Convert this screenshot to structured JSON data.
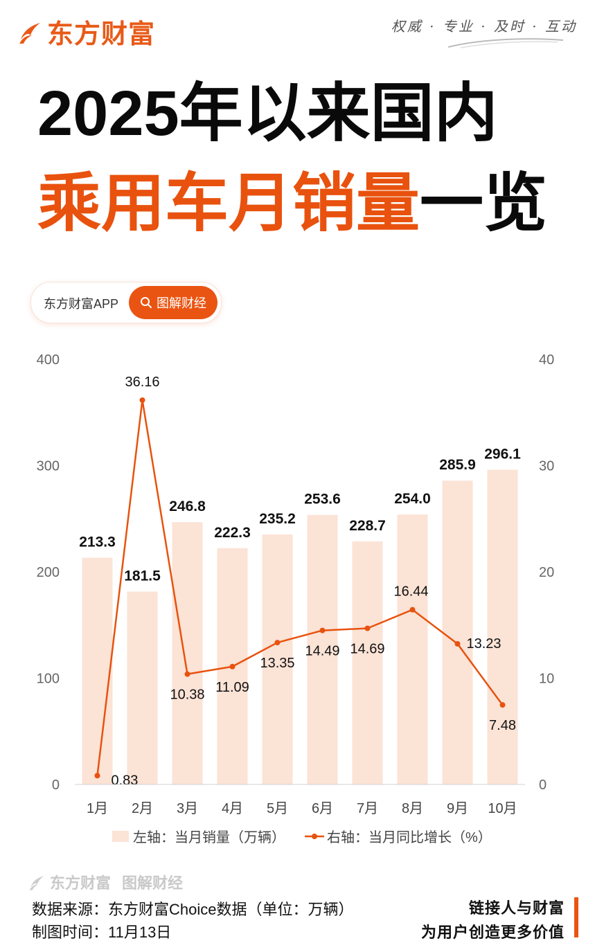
{
  "header": {
    "brand": "东方财富",
    "slogan": "权威 · 专业 · 及时 · 互动"
  },
  "title": {
    "line1": "2025年以来国内",
    "line2_accent": "乘用车月销量",
    "line2_rest": "一览"
  },
  "badge": {
    "app_label": "东方财富APP",
    "button_label": "图解财经"
  },
  "colors": {
    "accent": "#e8520e",
    "bar": "#fbe3d6",
    "axis_text": "#666666"
  },
  "chart_data": {
    "type": "bar+line",
    "categories": [
      "1月",
      "2月",
      "3月",
      "4月",
      "5月",
      "6月",
      "7月",
      "8月",
      "9月",
      "10月"
    ],
    "series": [
      {
        "name": "左轴：当月销量（万辆）",
        "axis": "left",
        "type": "bar",
        "values": [
          213.3,
          181.5,
          246.8,
          222.3,
          235.2,
          253.6,
          228.7,
          254.0,
          285.9,
          296.1
        ],
        "labels": [
          "213.3",
          "181.5",
          "246.8",
          "222.3",
          "235.2",
          "253.6",
          "228.7",
          "254.0",
          "285.9",
          "296.1"
        ]
      },
      {
        "name": "右轴：当月同比增长（%）",
        "axis": "right",
        "type": "line",
        "values": [
          0.83,
          36.16,
          10.38,
          11.09,
          13.35,
          14.49,
          14.69,
          16.44,
          13.23,
          7.48
        ],
        "labels": [
          "0.83",
          "36.16",
          "10.38",
          "11.09",
          "13.35",
          "14.49",
          "14.69",
          "16.44",
          "13.23",
          "7.48"
        ]
      }
    ],
    "left_axis": {
      "min": 0,
      "max": 400,
      "ticks": [
        0,
        100,
        200,
        300,
        400
      ]
    },
    "right_axis": {
      "min": 0,
      "max": 40,
      "ticks": [
        0,
        10,
        20,
        30,
        40
      ]
    },
    "legend": {
      "bar_label": "左轴：当月销量（万辆）",
      "line_label": "右轴：当月同比增长（%）",
      "position": "bottom"
    }
  },
  "footer": {
    "brand": "东方财富",
    "brand_sub": "图解财经",
    "source": "数据来源：东方财富Choice数据（单位：万辆）",
    "date": "制图时间：11月13日",
    "tagline1": "链接人与财富",
    "tagline2": "为用户创造更多价值"
  }
}
